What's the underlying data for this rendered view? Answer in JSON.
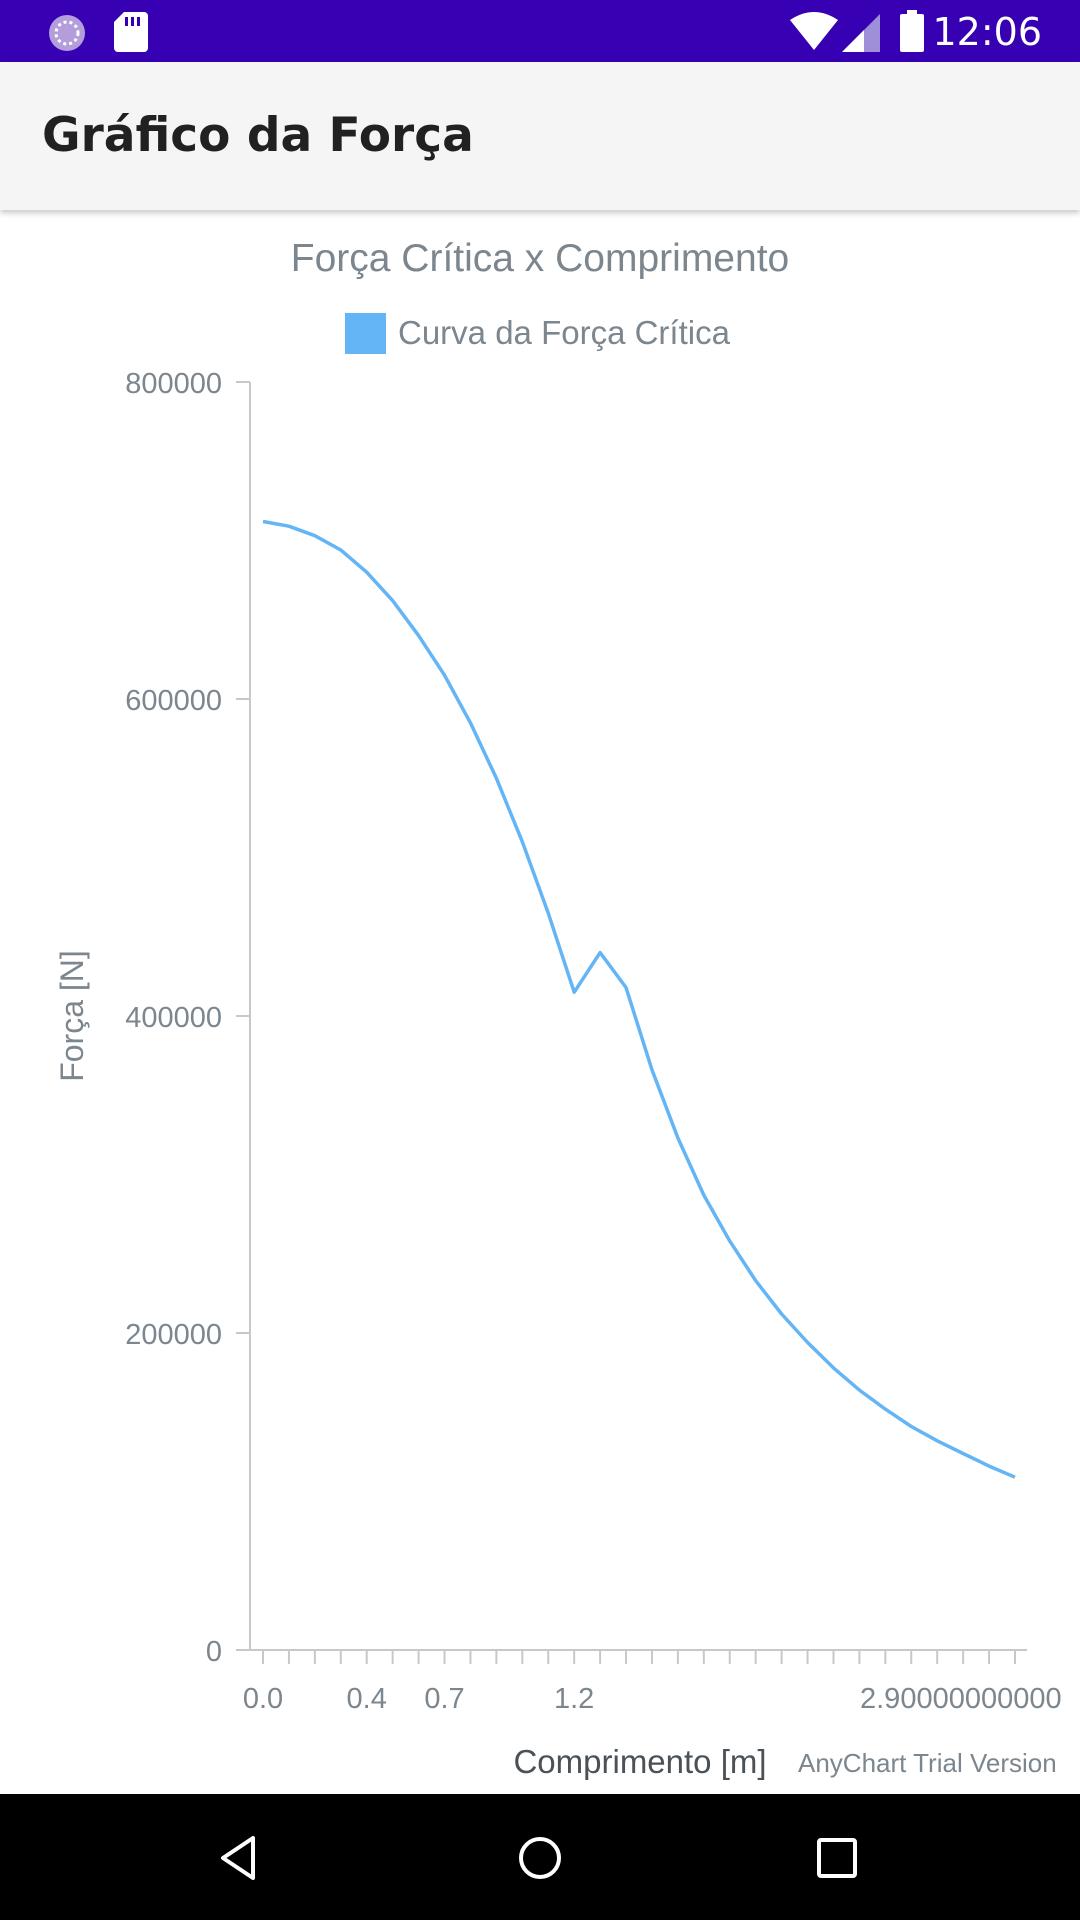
{
  "status_bar": {
    "time": "12:06",
    "icons": [
      "loading-icon",
      "sd-card-icon",
      "wifi-icon",
      "signal-icon",
      "battery-icon"
    ],
    "background": "#3700b3"
  },
  "app_bar": {
    "title": "Gráfico da Força"
  },
  "chart_data": {
    "type": "line",
    "title": "Força Crítica x Comprimento",
    "xlabel": "Comprimento [m]",
    "ylabel": "Força [N]",
    "ylim": [
      0,
      800000
    ],
    "yticks": [
      "800000",
      "600000",
      "400000",
      "200000",
      "0"
    ],
    "xtick_labels": [
      "0.0",
      "0.4",
      "0.7",
      "1.2",
      "2.90000000000"
    ],
    "grid": false,
    "legend": {
      "position": "top-center",
      "entries": [
        "Curva da Força Crítica"
      ]
    },
    "series": [
      {
        "name": "Curva da Força Crítica",
        "color": "#64b5f6",
        "x": [
          0.0,
          0.1,
          0.2,
          0.3,
          0.4,
          0.5,
          0.6,
          0.7,
          0.8,
          0.9,
          1.0,
          1.1,
          1.2,
          1.3,
          1.4,
          1.5,
          1.6,
          1.7,
          1.8,
          1.9,
          2.0,
          2.1,
          2.2,
          2.3,
          2.4,
          2.5,
          2.6,
          2.7,
          2.8,
          2.9
        ],
        "y": [
          712000,
          709000,
          703000,
          694000,
          680000,
          662000,
          640000,
          615000,
          585000,
          550000,
          510000,
          465000,
          415000,
          440000,
          418000,
          366000,
          323000,
          287000,
          258000,
          233000,
          212000,
          194000,
          178000,
          164000,
          152000,
          141000,
          132000,
          124000,
          116000,
          109000
        ]
      }
    ]
  },
  "watermark": "AnyChart Trial Version",
  "nav_bar": {
    "buttons": [
      "back-icon",
      "home-icon",
      "recents-icon"
    ]
  }
}
